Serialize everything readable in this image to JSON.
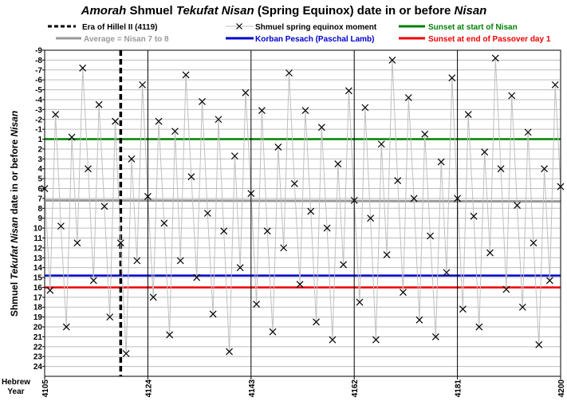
{
  "title": {
    "part1": "Amorah",
    "part2": " Shmuel ",
    "part3": "Tekufat Nisan",
    "part4": " (Spring Equinox) date in or before ",
    "part5": "Nisan"
  },
  "ylabel": {
    "part1": "Shmuel ",
    "part2": "Tekufat Nisan",
    "part3": " date in or before ",
    "part4": "Nisan"
  },
  "xlabel": {
    "line1": "Hebrew",
    "line2": "Year"
  },
  "legend": {
    "hillel": "Era of Hillel II (4119)",
    "average": "Average = Nisan 7 to 8",
    "series": "Shmuel spring equinox moment",
    "pesach": "Korban Pesach (Paschal Lamb)",
    "sunset_start": "Sunset at start of Nisan",
    "sunset_end": "Sunset at end of Passover day 1"
  },
  "colors": {
    "series_line": "#c0c0c0",
    "average": "#999999",
    "pesach": "#0000cc",
    "sunset_start": "#008000",
    "sunset_end": "#ee0000",
    "grid": "#bdbdbd",
    "marker": "#000000"
  },
  "chart_data": {
    "type": "line",
    "title": "Amorah Shmuel Tekufat Nisan (Spring Equinox) date in or before Nisan",
    "xlabel": "Hebrew Year",
    "ylabel": "Shmuel Tekufat Nisan date in or before Nisan",
    "xlim": [
      4105,
      4200
    ],
    "ylim": [
      24,
      -9
    ],
    "y_reversed": true,
    "x_ticks": [
      4105,
      4124,
      4143,
      4162,
      4181,
      4200
    ],
    "y_ticks": [
      -9,
      -8,
      -7,
      -6,
      -5,
      -4,
      -3,
      -2,
      -1,
      1,
      2,
      3,
      4,
      5,
      6,
      7,
      8,
      9,
      10,
      11,
      12,
      13,
      14,
      15,
      16,
      17,
      18,
      19,
      20,
      21,
      22,
      23,
      24
    ],
    "series": [
      {
        "name": "Shmuel spring equinox moment",
        "marker": "x",
        "x": [
          4105,
          4106,
          4107,
          4108,
          4109,
          4110,
          4111,
          4112,
          4113,
          4114,
          4115,
          4116,
          4117,
          4118,
          4119,
          4120,
          4121,
          4122,
          4123,
          4124,
          4125,
          4126,
          4127,
          4128,
          4129,
          4130,
          4131,
          4132,
          4133,
          4134,
          4135,
          4136,
          4137,
          4138,
          4139,
          4140,
          4141,
          4142,
          4143,
          4144,
          4145,
          4146,
          4147,
          4148,
          4149,
          4150,
          4151,
          4152,
          4153,
          4154,
          4155,
          4156,
          4157,
          4158,
          4159,
          4160,
          4161,
          4162,
          4163,
          4164,
          4165,
          4166,
          4167,
          4168,
          4169,
          4170,
          4171,
          4172,
          4173,
          4174,
          4175,
          4176,
          4177,
          4178,
          4179,
          4180,
          4181,
          4182,
          4183,
          4184,
          4185,
          4186,
          4187,
          4188,
          4189,
          4190,
          4191,
          4192,
          4193,
          4194,
          4195,
          4196,
          4197,
          4198,
          4199,
          4200
        ],
        "y": [
          6.0,
          16.3,
          -2.5,
          9.8,
          20.0,
          0.8,
          11.5,
          -7.2,
          4.0,
          15.3,
          -3.5,
          7.8,
          19.0,
          -1.8,
          11.5,
          22.7,
          3.0,
          13.3,
          -5.5,
          6.8,
          17.0,
          -1.8,
          9.5,
          20.8,
          0.2,
          13.3,
          -6.5,
          4.8,
          15.0,
          -3.8,
          8.5,
          18.7,
          -2.0,
          10.3,
          22.5,
          2.7,
          14.0,
          -4.7,
          6.5,
          17.7,
          -2.9,
          10.3,
          20.5,
          1.8,
          12.0,
          -6.7,
          5.5,
          15.7,
          -2.9,
          8.3,
          19.5,
          -1.2,
          10.0,
          21.3,
          3.5,
          13.7,
          -4.9,
          7.2,
          17.5,
          -3.2,
          9.0,
          21.3,
          1.5,
          12.7,
          -8.0,
          5.2,
          16.5,
          -4.2,
          7.0,
          19.3,
          -0.5,
          10.8,
          21.0,
          3.3,
          14.5,
          -6.2,
          7.0,
          18.2,
          -2.5,
          8.8,
          20.0,
          2.3,
          12.5,
          -8.2,
          4.0,
          16.2,
          -4.4,
          7.7,
          18.0,
          -0.7,
          11.5,
          21.8,
          4.0,
          15.3,
          -5.5,
          5.8
        ]
      },
      {
        "name": "Average = Nisan 7 to 8",
        "x": [
          4105,
          4200
        ],
        "y": [
          7.2,
          7.3
        ]
      },
      {
        "name": "Korban Pesach (Paschal Lamb)",
        "y": 14.8
      },
      {
        "name": "Sunset at start of Nisan",
        "y": 1
      },
      {
        "name": "Sunset at end of Passover day 1",
        "y": 16
      },
      {
        "name": "Era of Hillel II (4119)",
        "x": 4119
      }
    ]
  }
}
